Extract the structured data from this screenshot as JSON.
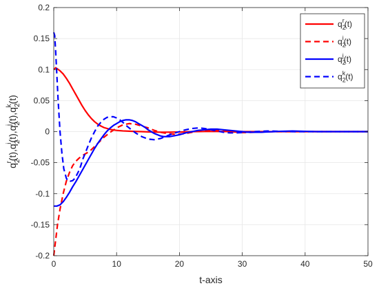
{
  "chart_data": {
    "type": "line",
    "xlabel": "t-axis",
    "ylabel": {
      "parts": [
        {
          "base": "q",
          "sub": "2",
          "sup": "r",
          "tail": "(t),"
        },
        {
          "base": "q",
          "sub": "2",
          "sup": "i",
          "tail": "(t),"
        },
        {
          "base": "q",
          "sub": "2",
          "sup": "j",
          "tail": "(t),"
        },
        {
          "base": "q",
          "sub": "2",
          "sup": "k",
          "tail": "(t)"
        }
      ]
    },
    "xlim": [
      0,
      50
    ],
    "ylim": [
      -0.2,
      0.2
    ],
    "x_ticks": [
      0,
      10,
      20,
      30,
      40,
      50
    ],
    "x_tick_labels": [
      "0",
      "10",
      "20",
      "30",
      "40",
      "50"
    ],
    "y_ticks": [
      -0.2,
      -0.15,
      -0.1,
      -0.05,
      0,
      0.05,
      0.1,
      0.15,
      0.2
    ],
    "y_tick_labels": [
      "-0.2",
      "-0.15",
      "-0.1",
      "-0.05",
      "0",
      "0.05",
      "0.1",
      "0.15",
      "0.2"
    ],
    "grid": true,
    "legend_position": "top-right",
    "series": [
      {
        "name": "q2r(t)",
        "label": {
          "base": "q",
          "sub": "2",
          "sup": "r",
          "tail": "(t)"
        },
        "color": "#ff0000",
        "style": "solid",
        "x": [
          0,
          0.3,
          0.6,
          1,
          1.5,
          2,
          2.5,
          3,
          3.5,
          4,
          4.5,
          5,
          5.5,
          6,
          6.5,
          7,
          7.5,
          8,
          9,
          10,
          11,
          12,
          13,
          14,
          15,
          16,
          17,
          18,
          20,
          22,
          24,
          26,
          28,
          30,
          35,
          40,
          45,
          50
        ],
        "y": [
          0.1,
          0.103,
          0.101,
          0.098,
          0.093,
          0.086,
          0.078,
          0.069,
          0.06,
          0.051,
          0.042,
          0.034,
          0.027,
          0.021,
          0.016,
          0.012,
          0.009,
          0.0065,
          0.0035,
          0.002,
          0.0012,
          0.0007,
          0.0003,
          0.0,
          -0.0004,
          -0.0007,
          -0.0009,
          -0.0009,
          -0.0006,
          0.0,
          0.0002,
          0.0002,
          0.0001,
          0.0,
          0.0,
          0.0,
          0.0,
          0.0
        ]
      },
      {
        "name": "q2i(t)",
        "label": {
          "base": "q",
          "sub": "2",
          "sup": "i",
          "tail": "(t)"
        },
        "color": "#ff0000",
        "style": "dashed",
        "x": [
          0,
          0.3,
          0.6,
          1,
          1.5,
          2,
          2.5,
          3,
          3.5,
          4,
          4.5,
          5,
          5.5,
          6,
          6.5,
          7,
          7.5,
          8,
          8.5,
          9,
          10,
          11,
          12,
          13,
          14,
          15,
          16,
          17,
          18,
          19,
          20,
          21,
          22,
          23,
          24,
          25,
          26,
          27,
          28,
          30,
          32,
          35,
          40,
          45,
          50
        ],
        "y": [
          -0.2,
          -0.175,
          -0.15,
          -0.125,
          -0.1,
          -0.08,
          -0.066,
          -0.055,
          -0.048,
          -0.043,
          -0.039,
          -0.036,
          -0.033,
          -0.029,
          -0.024,
          -0.019,
          -0.014,
          -0.009,
          -0.005,
          -0.001,
          0.006,
          0.011,
          0.013,
          0.012,
          0.009,
          0.006,
          0.002,
          -0.001,
          -0.003,
          -0.004,
          -0.004,
          -0.003,
          -0.001,
          0.001,
          0.002,
          0.002,
          0.002,
          0.001,
          0.0,
          -0.0015,
          -0.001,
          0.0,
          0.0,
          0.0,
          0.0
        ]
      },
      {
        "name": "q2j(t)",
        "label": {
          "base": "q",
          "sub": "2",
          "sup": "j",
          "tail": "(t)"
        },
        "color": "#0000ff",
        "style": "solid",
        "x": [
          0,
          0.5,
          1,
          1.5,
          2,
          2.5,
          3,
          3.5,
          4,
          4.5,
          5,
          5.5,
          6,
          6.5,
          7,
          7.5,
          8,
          8.5,
          9,
          9.5,
          10,
          10.5,
          11,
          11.5,
          12,
          12.5,
          13,
          13.5,
          14,
          14.5,
          15,
          15.5,
          16,
          16.5,
          17,
          17.5,
          18,
          18.5,
          19,
          19.5,
          20,
          21,
          22,
          23,
          24,
          25,
          26,
          27,
          28,
          29,
          30,
          31,
          32,
          33,
          34,
          35,
          36,
          38,
          40,
          42,
          45,
          50
        ],
        "y": [
          -0.12,
          -0.12,
          -0.118,
          -0.113,
          -0.106,
          -0.098,
          -0.089,
          -0.081,
          -0.072,
          -0.063,
          -0.054,
          -0.045,
          -0.036,
          -0.027,
          -0.019,
          -0.012,
          -0.005,
          0.001,
          0.006,
          0.01,
          0.013,
          0.016,
          0.018,
          0.019,
          0.019,
          0.018,
          0.016,
          0.013,
          0.01,
          0.007,
          0.003,
          0.0,
          -0.003,
          -0.005,
          -0.007,
          -0.008,
          -0.008,
          -0.008,
          -0.007,
          -0.006,
          -0.005,
          -0.002,
          0.0,
          0.002,
          0.003,
          0.004,
          0.004,
          0.003,
          0.002,
          0.001,
          0.0,
          -0.001,
          -0.001,
          -0.001,
          -0.0005,
          0.0,
          0.0005,
          0.001,
          0.0005,
          0.0,
          0.0,
          0.0
        ]
      },
      {
        "name": "q2k(t)",
        "label": {
          "base": "q",
          "sub": "2",
          "sup": "k",
          "tail": "(t)"
        },
        "color": "#0000ff",
        "style": "dashed",
        "x": [
          0,
          0.15,
          0.3,
          0.5,
          0.7,
          1,
          1.3,
          1.6,
          2,
          2.3,
          2.6,
          3,
          3.3,
          3.6,
          4,
          4.3,
          4.6,
          5,
          5.5,
          6,
          6.5,
          7,
          7.5,
          8,
          8.5,
          9,
          9.5,
          10,
          10.5,
          11,
          11.5,
          12,
          12.5,
          13,
          14,
          15,
          16,
          17,
          18,
          19,
          20,
          21,
          22,
          23,
          24,
          25,
          26,
          27,
          28,
          29,
          30,
          31,
          32,
          34,
          36,
          38,
          40,
          45,
          50
        ],
        "y": [
          0.16,
          0.155,
          0.13,
          0.09,
          0.05,
          0.0,
          -0.035,
          -0.06,
          -0.075,
          -0.08,
          -0.08,
          -0.079,
          -0.076,
          -0.071,
          -0.063,
          -0.055,
          -0.045,
          -0.035,
          -0.022,
          -0.01,
          0.0,
          0.009,
          0.015,
          0.02,
          0.023,
          0.024,
          0.024,
          0.022,
          0.019,
          0.015,
          0.01,
          0.006,
          0.002,
          -0.002,
          -0.008,
          -0.012,
          -0.013,
          -0.011,
          -0.007,
          -0.003,
          0.0,
          0.003,
          0.005,
          0.006,
          0.005,
          0.003,
          0.001,
          -0.001,
          -0.002,
          -0.002,
          -0.0015,
          -0.0005,
          0.0,
          0.001,
          0.0005,
          0.0,
          0.0,
          0.0,
          0.0
        ]
      }
    ]
  }
}
